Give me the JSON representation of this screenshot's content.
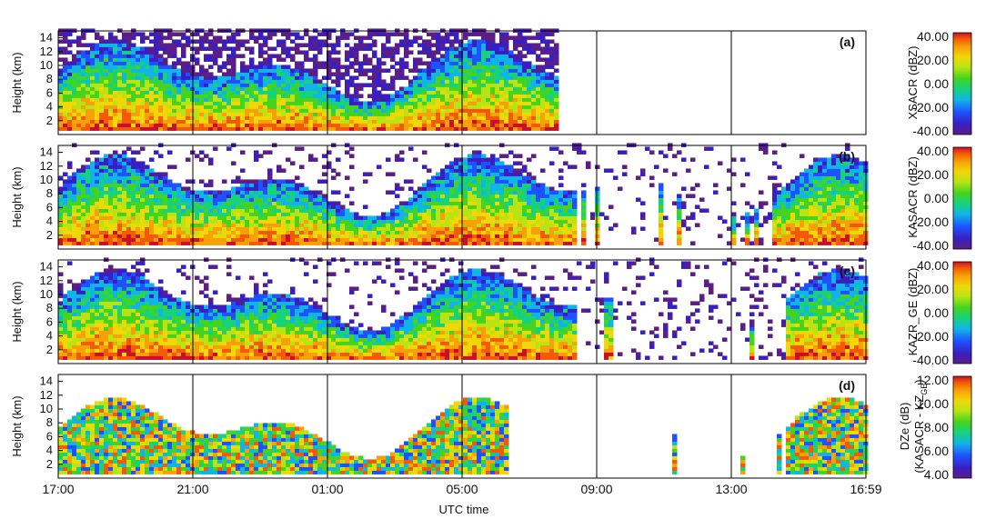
{
  "chart_data": {
    "type": "heatmap",
    "xlabel": "UTC time",
    "x_ticks": [
      "17:00",
      "21:00",
      "01:00",
      "05:00",
      "09:00",
      "13:00",
      "16:59"
    ],
    "ylim": [
      0,
      15
    ],
    "y_ticks": [
      2,
      4,
      6,
      8,
      10,
      12,
      14
    ],
    "panels": [
      {
        "tag": "(a)",
        "ylabel": "Height (km)",
        "colorbar": {
          "title": "XSACR (dBZ)",
          "range": [
            -40,
            40
          ],
          "ticks": [
            "40.00",
            "20.00",
            "0.00",
            "-20.00",
            "-40.00"
          ]
        },
        "data_end_fraction": 0.615
      },
      {
        "tag": "(b)",
        "ylabel": "Height (km)",
        "colorbar": {
          "title": "KASACR (dBZ)",
          "range": [
            -40,
            40
          ],
          "ticks": [
            "40.00",
            "20.00",
            "0.00",
            "-20.00",
            "-40.00"
          ]
        },
        "data_end_fraction": 1.0
      },
      {
        "tag": "(c)",
        "ylabel": "Height (km)",
        "colorbar": {
          "title": "KAZR_GE (dBZ)",
          "range": [
            -40,
            40
          ],
          "ticks": [
            "40.00",
            "20.00",
            "0.00",
            "-20.00",
            "-40.00"
          ]
        },
        "data_end_fraction": 1.0
      },
      {
        "tag": "(d)",
        "ylabel": "Height (km)",
        "colorbar": {
          "title": "DZe (dB)",
          "title2_main": "(KASACR - KZ",
          "title2_sub": "GE",
          "title2_close": ")",
          "range": [
            4,
            12
          ],
          "ticks": [
            "12.00",
            "10.00",
            "8.00",
            "6.00",
            "4.00"
          ]
        },
        "data_end_fraction": 1.0
      }
    ]
  },
  "colors": {
    "colormap": [
      "#5a1e86",
      "#3a1fc0",
      "#1e52ff",
      "#11b4e6",
      "#18d27a",
      "#45d31e",
      "#b8e414",
      "#f0d808",
      "#f8a008",
      "#f25a06",
      "#c8102a"
    ],
    "divider_line": "#000000"
  }
}
